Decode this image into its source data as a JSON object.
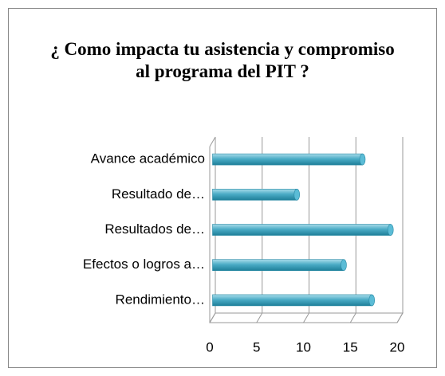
{
  "chart_data": {
    "type": "bar",
    "orientation": "horizontal",
    "title": "¿ Como impacta tu asistencia y compromiso al programa del PIT ?",
    "categories": [
      "Avance académico",
      "Resultado de…",
      "Resultados de…",
      "Efectos o logros a…",
      "Rendimiento…"
    ],
    "values": [
      16,
      9,
      19,
      14,
      17
    ],
    "color": "#4bacc6",
    "xlim": [
      0,
      20
    ],
    "xticks": [
      0,
      5,
      10,
      15,
      20
    ],
    "grid": true
  }
}
